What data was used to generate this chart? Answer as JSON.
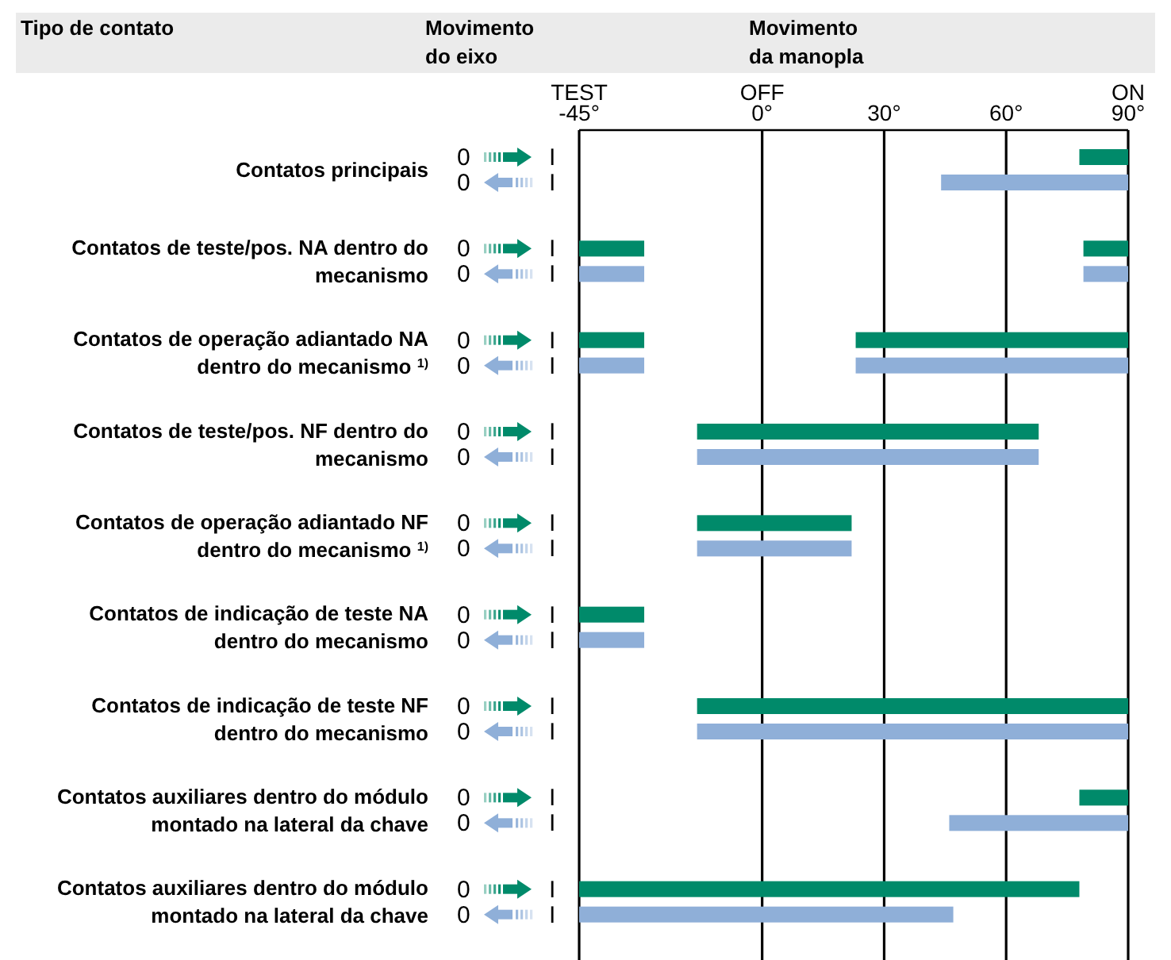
{
  "chart_data": {
    "type": "bar",
    "orientation": "horizontal",
    "xlabel": "Movimento da manopla",
    "annotations": [
      "Tipo de contato",
      "Movimento do eixo",
      "0",
      "I"
    ],
    "categories": [
      "Contatos principais",
      "Contatos de teste/pos. NA dentro do mecanismo",
      "Contatos de operação adiantado NA dentro do mecanismo $^{1)}$",
      "Contatos de teste/pos. NF dentro do mecanismo",
      "Contatos de operação adiantado NF dentro do mecanismo $^{1)}$",
      "Contatos de indicação de teste NA dentro do mecanismo",
      "Contatos de indicação de teste NF dentro do mecanismo",
      "Contatos auxiliares dentro do módulo montado na lateral da chave",
      "Contatos auxiliares dentro do módulo montado na lateral da chave"
    ],
    "series": [
      {
        "color": "#008a6a",
        "base": [
          78,
          -45,
          -45,
          -16,
          -16,
          -45,
          -16,
          78,
          -45
        ],
        "values": [
          12,
          16,
          16,
          84,
          38,
          16,
          106,
          12,
          123
        ]
      },
      {
        "color": "#008a6a",
        "base": [
          null,
          79,
          23,
          null,
          null,
          null,
          null,
          null,
          null
        ],
        "values": [
          null,
          11,
          67,
          null,
          null,
          null,
          null,
          null,
          null
        ]
      },
      {
        "color": "#8fafd8",
        "base": [
          44,
          -45,
          -45,
          -16,
          -16,
          -45,
          -16,
          46,
          -45
        ],
        "values": [
          46,
          16,
          16,
          84,
          38,
          16,
          106,
          44,
          92
        ]
      },
      {
        "color": "#8fafd8",
        "base": [
          null,
          79,
          23,
          null,
          null,
          null,
          null,
          null,
          null
        ],
        "values": [
          null,
          11,
          67,
          null,
          null,
          null,
          null,
          null,
          null
        ]
      }
    ],
    "xlim": [
      -45,
      90
    ],
    "xticks": [
      {
        "value": -45,
        "label": "TEST\n-45°"
      },
      {
        "value": 0,
        "label": "OFF\n0°"
      },
      {
        "value": 30,
        "label": "30°"
      },
      {
        "value": 60,
        "label": "60°"
      },
      {
        "value": 90,
        "label": "ON\n90°"
      }
    ],
    "grid": "x"
  }
}
